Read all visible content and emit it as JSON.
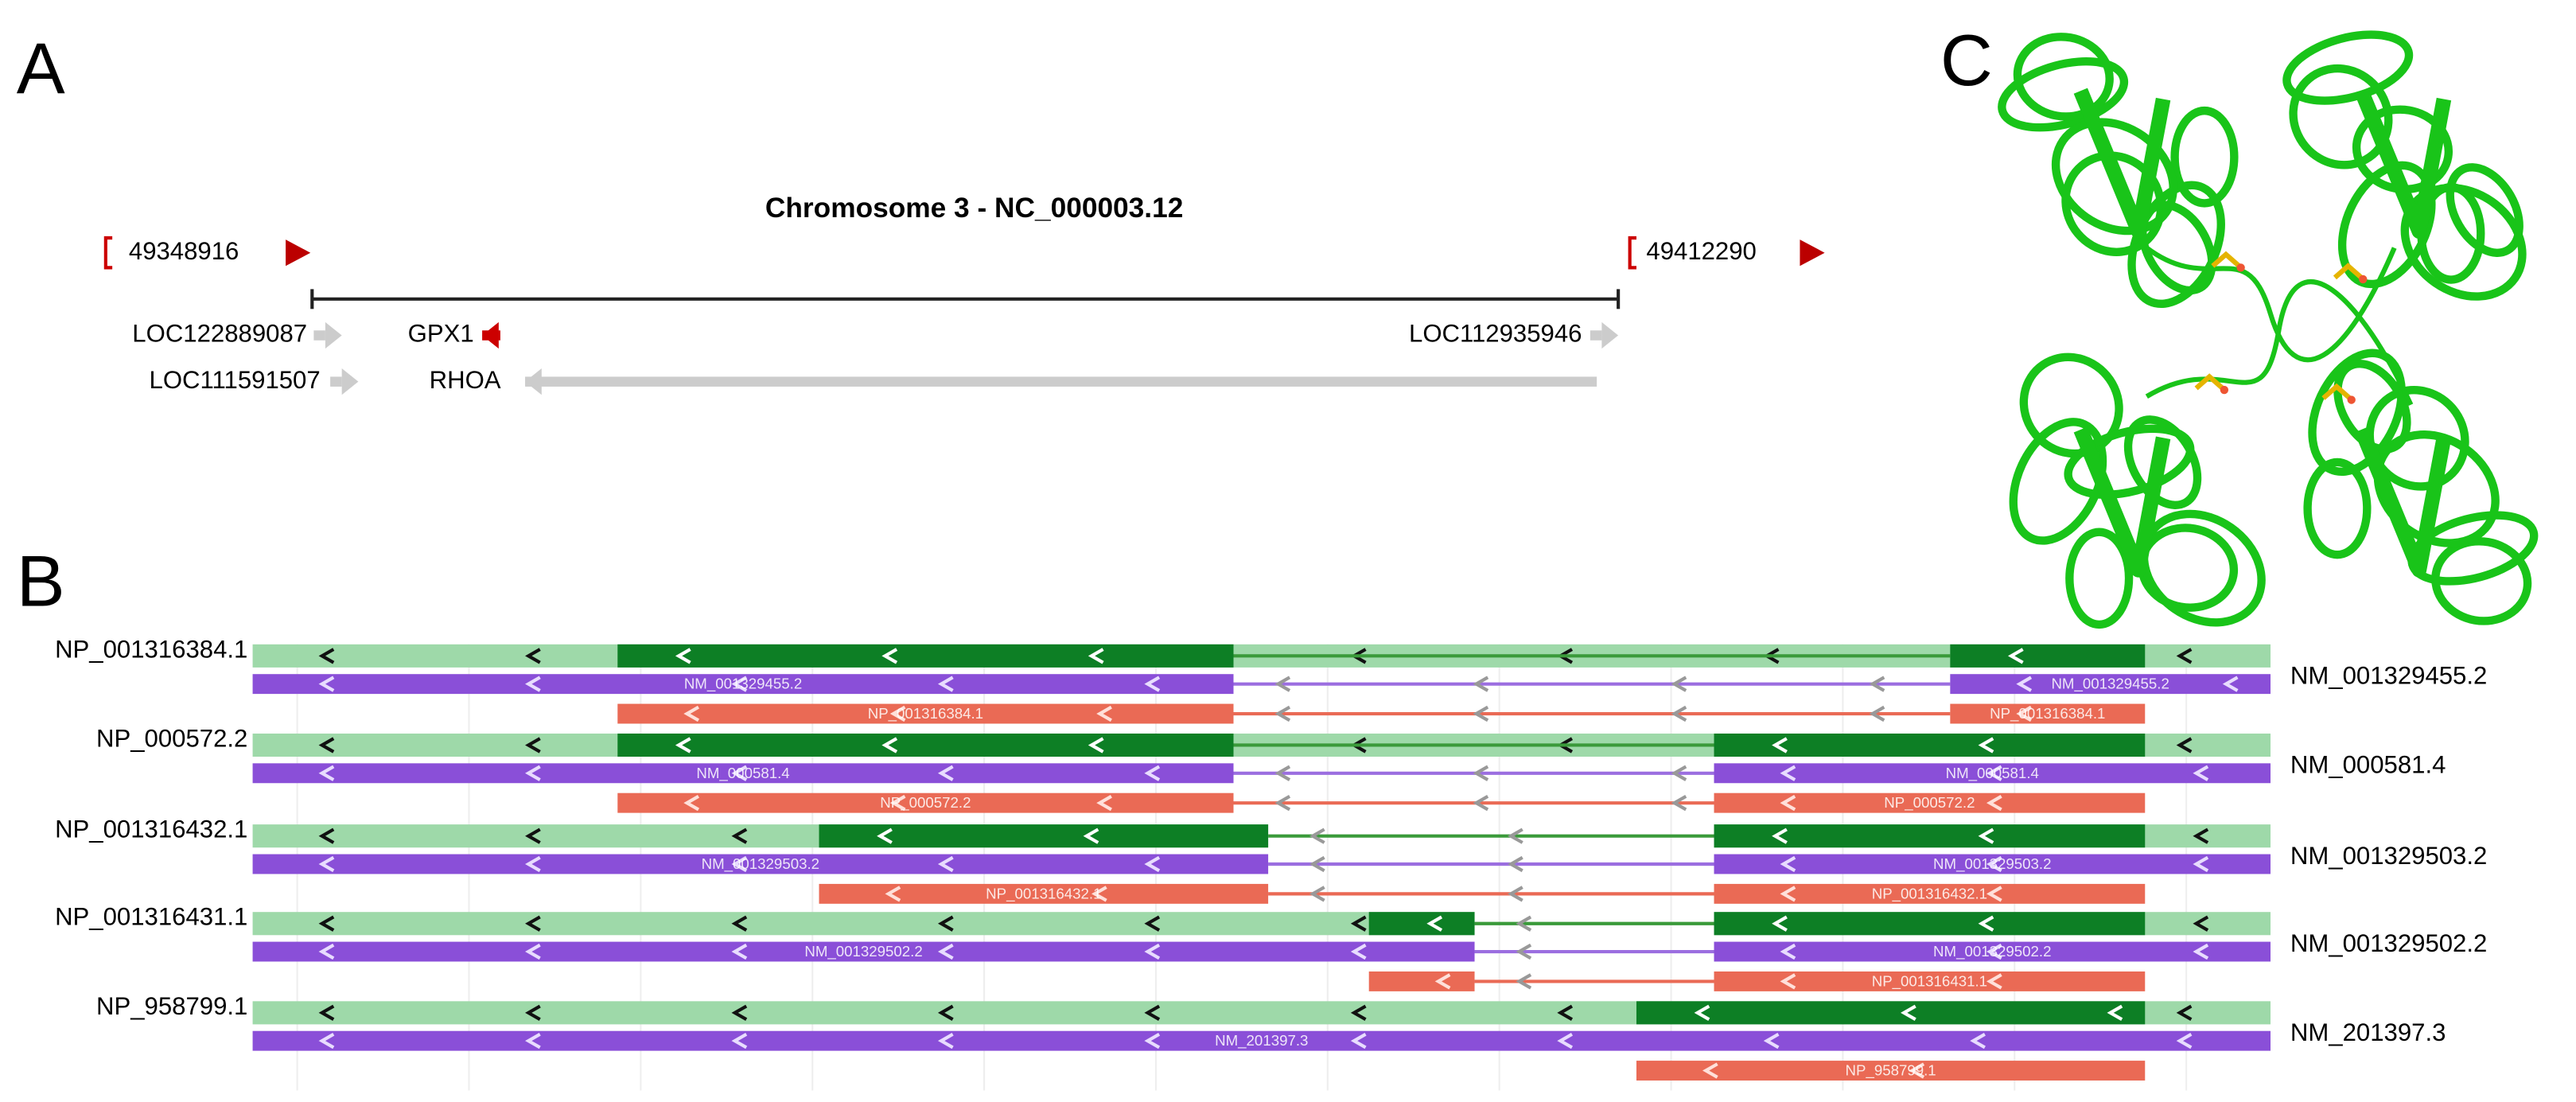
{
  "panels": {
    "a": "A",
    "b": "B",
    "c": "C"
  },
  "chromosome": {
    "title": "Chromosome 3 - NC_000003.12",
    "start": "49348916",
    "end": "49412290"
  },
  "genes": [
    {
      "label": "LOC122889087"
    },
    {
      "label": "GPX1"
    },
    {
      "label": "LOC112935946"
    },
    {
      "label": "LOC111591507"
    },
    {
      "label": "RHOA"
    }
  ],
  "transcripts": [
    {
      "protein": "NP_001316384.1",
      "mrna": "NM_001329455.2"
    },
    {
      "protein": "NP_000572.2",
      "mrna": "NM_000581.4"
    },
    {
      "protein": "NP_001316432.1",
      "mrna": "NM_001329503.2"
    },
    {
      "protein": "NP_001316431.1",
      "mrna": "NM_001329502.2"
    },
    {
      "protein": "NP_958799.1",
      "mrna": "NM_201397.3"
    }
  ]
}
